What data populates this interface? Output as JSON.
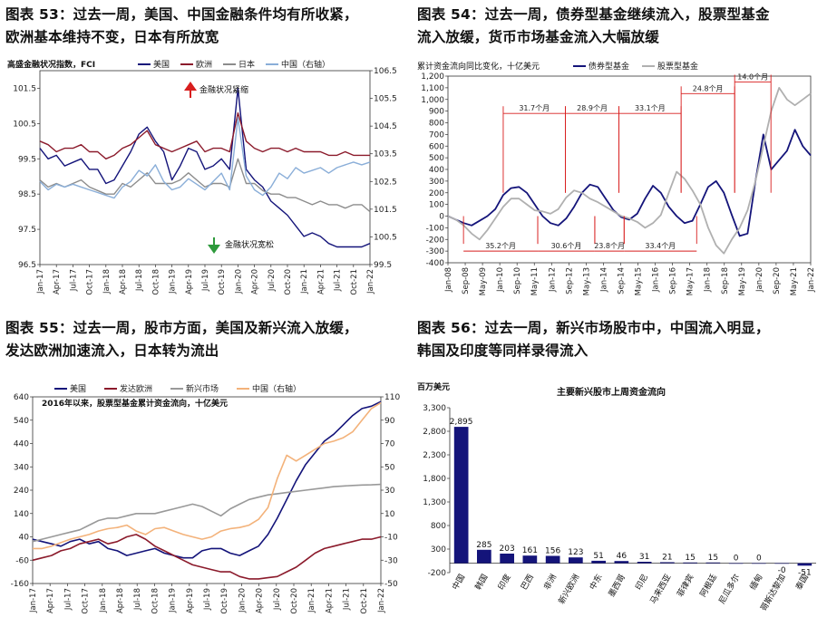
{
  "chart_data": [
    {
      "id": "fci",
      "type": "line",
      "title_line1": "图表 53：过去一周，美国、中国金融条件均有所收紧，",
      "title_line2": "欧洲基本维持不变，日本有所放宽",
      "subtitle": "高盛金融状况指数，FCI",
      "annotations": {
        "tight": "金融状况紧缩",
        "loose": "金融状况宽松"
      },
      "x_labels": [
        "Jan-17",
        "Apr-17",
        "Jul-17",
        "Oct-17",
        "Jan-18",
        "Apr-18",
        "Jul-18",
        "Oct-18",
        "Jan-19",
        "Apr-19",
        "Jul-19",
        "Oct-19",
        "Jan-20",
        "Apr-20",
        "Jul-20",
        "Oct-20",
        "Jan-21",
        "Apr-21",
        "Jul-21",
        "Oct-21",
        "Jan-22"
      ],
      "y_left_ticks": [
        "101.5",
        "100.5",
        "99.5",
        "98.5",
        "97.5",
        "96.5"
      ],
      "y_right_ticks": [
        "106.5",
        "105.5",
        "104.5",
        "103.5",
        "102.5",
        "101.5",
        "100.5",
        "99.5"
      ],
      "ylim_left": [
        96.5,
        102.0
      ],
      "ylim_right": [
        99.5,
        106.5
      ],
      "series": [
        {
          "name": "美国",
          "color": "#14147a",
          "axis": "left",
          "values": [
            99.8,
            99.5,
            99.6,
            99.3,
            99.4,
            99.5,
            99.2,
            99.2,
            98.8,
            98.9,
            99.3,
            99.7,
            100.2,
            100.4,
            100.0,
            99.7,
            98.9,
            99.3,
            99.8,
            99.7,
            99.2,
            99.3,
            99.5,
            99.2,
            101.5,
            99.2,
            98.9,
            98.7,
            98.3,
            98.1,
            97.9,
            97.6,
            97.3,
            97.4,
            97.3,
            97.1,
            97.0,
            97.0,
            97.0,
            97.0,
            97.1
          ]
        },
        {
          "name": "欧洲",
          "color": "#8b1a2b",
          "axis": "left",
          "values": [
            100.0,
            99.9,
            99.7,
            99.8,
            99.8,
            99.9,
            99.7,
            99.7,
            99.5,
            99.6,
            99.8,
            99.9,
            100.1,
            100.3,
            99.9,
            99.8,
            99.7,
            99.8,
            99.9,
            100.0,
            99.7,
            99.8,
            99.8,
            99.7,
            100.8,
            100.0,
            99.8,
            99.7,
            99.8,
            99.8,
            99.7,
            99.8,
            99.7,
            99.7,
            99.7,
            99.6,
            99.6,
            99.7,
            99.6,
            99.6,
            99.6
          ]
        },
        {
          "name": "日本",
          "color": "#8c8c8c",
          "axis": "left",
          "values": [
            98.9,
            98.7,
            98.8,
            98.7,
            98.8,
            98.9,
            98.7,
            98.6,
            98.5,
            98.5,
            98.8,
            98.7,
            98.9,
            99.1,
            98.8,
            98.8,
            98.8,
            98.9,
            99.1,
            98.9,
            98.7,
            98.8,
            98.8,
            98.7,
            99.5,
            98.8,
            98.8,
            98.6,
            98.5,
            98.5,
            98.4,
            98.4,
            98.3,
            98.2,
            98.3,
            98.2,
            98.2,
            98.1,
            98.2,
            98.2,
            98.0
          ]
        },
        {
          "name": "中国（右轴）",
          "color": "#8aaed8",
          "axis": "right",
          "values": [
            102.5,
            102.2,
            102.4,
            102.3,
            102.4,
            102.3,
            102.2,
            102.1,
            102.0,
            101.9,
            102.3,
            102.5,
            102.9,
            102.7,
            103.1,
            102.5,
            102.2,
            102.3,
            102.6,
            102.4,
            102.2,
            102.5,
            102.8,
            102.2,
            104.8,
            102.7,
            102.2,
            102.0,
            102.3,
            102.8,
            102.6,
            103.0,
            102.8,
            102.9,
            103.0,
            102.8,
            103.0,
            103.1,
            103.2,
            103.1,
            103.2
          ]
        }
      ]
    },
    {
      "id": "bondflows",
      "type": "line",
      "title_line1": "图表 54：过去一周，债券型基金继续流入，股票型基金",
      "title_line2": "流入放缓，货币市场基金流入大幅放缓",
      "subtitle": "累计资金流向同比变化，十亿美元",
      "x_labels": [
        "Jan-08",
        "Sep-08",
        "May-09",
        "Jan-10",
        "Sep-10",
        "May-11",
        "Jan-12",
        "Sep-12",
        "May-13",
        "Jan-14",
        "Sep-14",
        "May-15",
        "Jan-16",
        "Sep-16",
        "May-17",
        "Jan-18",
        "Sep-18",
        "May-19",
        "Jan-20",
        "Sep-20",
        "May-21",
        "Jan-22"
      ],
      "y_ticks": [
        "1,200",
        "1,100",
        "1,000",
        "900",
        "800",
        "700",
        "600",
        "500",
        "400",
        "300",
        "200",
        "100",
        "0",
        "-100",
        "-200",
        "-300",
        "-400"
      ],
      "ylim": [
        -400,
        1200
      ],
      "period_annotations": [
        "35.2个月",
        "31.7个月",
        "30.6个月",
        "28.9个月",
        "23.8个月",
        "33.1个月",
        "33.4个月",
        "24.8个月",
        "14.0个月"
      ],
      "series": [
        {
          "name": "债券型基金",
          "color": "#14147a",
          "values": [
            0,
            -30,
            -60,
            -80,
            -40,
            0,
            60,
            180,
            240,
            250,
            200,
            100,
            0,
            -60,
            -80,
            -20,
            80,
            200,
            270,
            250,
            150,
            50,
            -10,
            -30,
            20,
            150,
            260,
            200,
            80,
            0,
            -60,
            -40,
            100,
            250,
            300,
            200,
            10,
            -170,
            -150,
            300,
            700,
            400,
            480,
            560,
            740,
            600,
            520
          ]
        },
        {
          "name": "股票型基金",
          "color": "#b0b0b0",
          "values": [
            0,
            -30,
            -80,
            -150,
            -200,
            -120,
            -20,
            80,
            150,
            150,
            100,
            50,
            40,
            20,
            60,
            160,
            220,
            200,
            150,
            120,
            80,
            40,
            0,
            -20,
            -50,
            -100,
            -60,
            10,
            200,
            380,
            320,
            220,
            100,
            -100,
            -250,
            -320,
            -200,
            -100,
            50,
            300,
            600,
            900,
            1100,
            1000,
            950,
            1000,
            1050
          ]
        }
      ]
    },
    {
      "id": "equityflows",
      "type": "line",
      "title_line1": "图表 55：过去一周，股市方面，美国及新兴流入放缓，",
      "title_line2": "发达欧洲加速流入，日本转为流出",
      "subtitle": "2016年以来，股票型基金累计资金流向，十亿美元",
      "x_labels": [
        "Jan-17",
        "Apr-17",
        "Jul-17",
        "Oct-17",
        "Jan-18",
        "Apr-18",
        "Jul-18",
        "Oct-18",
        "Jan-19",
        "Apr-19",
        "Jul-19",
        "Oct-19",
        "Jan-20",
        "Apr-20",
        "Jul-20",
        "Oct-20",
        "Jan-21",
        "Apr-21",
        "Jul-21",
        "Oct-21",
        "Jan-22"
      ],
      "y_left_ticks": [
        "640",
        "540",
        "440",
        "340",
        "240",
        "140",
        "40",
        "-60",
        "-160"
      ],
      "y_right_ticks": [
        "110",
        "90",
        "70",
        "50",
        "30",
        "10",
        "-10",
        "-30",
        "-50"
      ],
      "ylim_left": [
        -160,
        640
      ],
      "ylim_right": [
        -50,
        110
      ],
      "series": [
        {
          "name": "美国",
          "color": "#14147a",
          "axis": "left",
          "values": [
            30,
            20,
            10,
            0,
            20,
            30,
            10,
            20,
            -10,
            -20,
            -40,
            -30,
            -20,
            -10,
            -30,
            -40,
            -50,
            -50,
            -20,
            -10,
            -10,
            -30,
            -40,
            -20,
            0,
            50,
            120,
            200,
            280,
            350,
            400,
            450,
            480,
            520,
            560,
            590,
            600,
            620
          ]
        },
        {
          "name": "发达欧洲",
          "color": "#8b1a2b",
          "axis": "left",
          "values": [
            -60,
            -50,
            -40,
            -20,
            -10,
            10,
            20,
            30,
            10,
            20,
            40,
            50,
            30,
            0,
            -20,
            -40,
            -60,
            -80,
            -90,
            -100,
            -110,
            -110,
            -130,
            -140,
            -140,
            -135,
            -130,
            -110,
            -90,
            -60,
            -30,
            -10,
            0,
            10,
            20,
            30,
            30,
            40
          ]
        },
        {
          "name": "新兴市场",
          "color": "#999999",
          "axis": "left",
          "values": [
            20,
            30,
            40,
            50,
            60,
            70,
            90,
            110,
            120,
            120,
            130,
            140,
            140,
            140,
            150,
            160,
            170,
            180,
            170,
            150,
            130,
            160,
            180,
            200,
            210,
            220,
            225,
            230,
            235,
            240,
            245,
            250,
            255,
            258,
            260,
            262,
            263,
            265
          ]
        },
        {
          "name": "中国（右轴）",
          "color": "#f3b27a",
          "axis": "right",
          "values": [
            -20,
            -20,
            -18,
            -15,
            -12,
            -10,
            -8,
            -5,
            -3,
            -2,
            0,
            -5,
            -8,
            -3,
            -2,
            -5,
            -8,
            -10,
            -12,
            -10,
            -5,
            -3,
            -2,
            0,
            5,
            15,
            40,
            60,
            55,
            60,
            65,
            70,
            72,
            75,
            80,
            90,
            100,
            105
          ]
        }
      ]
    },
    {
      "id": "emflows",
      "type": "bar",
      "title_line1": "图表 56：过去一周，新兴市场股市中，中国流入明显，",
      "title_line2": "韩国及印度等同样录得流入",
      "subtitle": "百万美元",
      "chart_title": "主要新兴股市上周资金流向",
      "ylim": [
        -200,
        3300
      ],
      "y_ticks": [
        "3,300",
        "2,800",
        "2,300",
        "1,800",
        "1,300",
        "800",
        "300",
        "-200"
      ],
      "categories": [
        "中国",
        "韩国",
        "印度",
        "巴西",
        "非洲",
        "新兴欧洲",
        "中东",
        "墨西哥",
        "印尼",
        "马来西亚",
        "菲律宾",
        "阿根廷",
        "尼瓜多尔",
        "缅甸",
        "哥斯达黎加",
        "泰国"
      ],
      "values": [
        2895,
        285,
        203,
        161,
        156,
        123,
        51,
        46,
        31,
        21,
        15,
        15,
        0,
        0,
        -0.3,
        -51
      ],
      "value_labels": [
        "2,895",
        "285",
        "203",
        "161",
        "156",
        "123",
        "51",
        "46",
        "31",
        "21",
        "15",
        "15",
        "0",
        "0",
        "-0",
        "-51"
      ],
      "bar_color": "#14147a"
    }
  ]
}
